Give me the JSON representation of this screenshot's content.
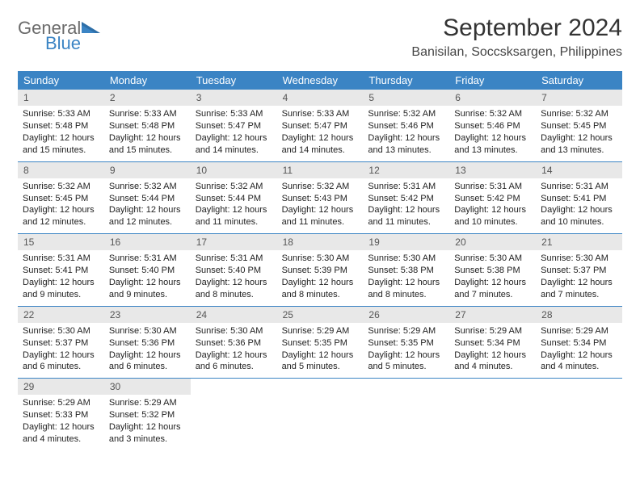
{
  "brand": {
    "part1": "General",
    "part2": "Blue"
  },
  "title": "September 2024",
  "location": "Banisilan, Soccsksargen, Philippines",
  "colors": {
    "header_bg": "#3b84c4",
    "daynum_bg": "#e8e8e8",
    "row_border": "#3b84c4",
    "page_bg": "#ffffff",
    "title_color": "#333333",
    "logo_gray": "#6b6b6b",
    "logo_blue": "#3b84c4"
  },
  "weekdays": [
    "Sunday",
    "Monday",
    "Tuesday",
    "Wednesday",
    "Thursday",
    "Friday",
    "Saturday"
  ],
  "weeks": [
    [
      {
        "n": "1",
        "sr": "Sunrise: 5:33 AM",
        "ss": "Sunset: 5:48 PM",
        "d1": "Daylight: 12 hours",
        "d2": "and 15 minutes."
      },
      {
        "n": "2",
        "sr": "Sunrise: 5:33 AM",
        "ss": "Sunset: 5:48 PM",
        "d1": "Daylight: 12 hours",
        "d2": "and 15 minutes."
      },
      {
        "n": "3",
        "sr": "Sunrise: 5:33 AM",
        "ss": "Sunset: 5:47 PM",
        "d1": "Daylight: 12 hours",
        "d2": "and 14 minutes."
      },
      {
        "n": "4",
        "sr": "Sunrise: 5:33 AM",
        "ss": "Sunset: 5:47 PM",
        "d1": "Daylight: 12 hours",
        "d2": "and 14 minutes."
      },
      {
        "n": "5",
        "sr": "Sunrise: 5:32 AM",
        "ss": "Sunset: 5:46 PM",
        "d1": "Daylight: 12 hours",
        "d2": "and 13 minutes."
      },
      {
        "n": "6",
        "sr": "Sunrise: 5:32 AM",
        "ss": "Sunset: 5:46 PM",
        "d1": "Daylight: 12 hours",
        "d2": "and 13 minutes."
      },
      {
        "n": "7",
        "sr": "Sunrise: 5:32 AM",
        "ss": "Sunset: 5:45 PM",
        "d1": "Daylight: 12 hours",
        "d2": "and 13 minutes."
      }
    ],
    [
      {
        "n": "8",
        "sr": "Sunrise: 5:32 AM",
        "ss": "Sunset: 5:45 PM",
        "d1": "Daylight: 12 hours",
        "d2": "and 12 minutes."
      },
      {
        "n": "9",
        "sr": "Sunrise: 5:32 AM",
        "ss": "Sunset: 5:44 PM",
        "d1": "Daylight: 12 hours",
        "d2": "and 12 minutes."
      },
      {
        "n": "10",
        "sr": "Sunrise: 5:32 AM",
        "ss": "Sunset: 5:44 PM",
        "d1": "Daylight: 12 hours",
        "d2": "and 11 minutes."
      },
      {
        "n": "11",
        "sr": "Sunrise: 5:32 AM",
        "ss": "Sunset: 5:43 PM",
        "d1": "Daylight: 12 hours",
        "d2": "and 11 minutes."
      },
      {
        "n": "12",
        "sr": "Sunrise: 5:31 AM",
        "ss": "Sunset: 5:42 PM",
        "d1": "Daylight: 12 hours",
        "d2": "and 11 minutes."
      },
      {
        "n": "13",
        "sr": "Sunrise: 5:31 AM",
        "ss": "Sunset: 5:42 PM",
        "d1": "Daylight: 12 hours",
        "d2": "and 10 minutes."
      },
      {
        "n": "14",
        "sr": "Sunrise: 5:31 AM",
        "ss": "Sunset: 5:41 PM",
        "d1": "Daylight: 12 hours",
        "d2": "and 10 minutes."
      }
    ],
    [
      {
        "n": "15",
        "sr": "Sunrise: 5:31 AM",
        "ss": "Sunset: 5:41 PM",
        "d1": "Daylight: 12 hours",
        "d2": "and 9 minutes."
      },
      {
        "n": "16",
        "sr": "Sunrise: 5:31 AM",
        "ss": "Sunset: 5:40 PM",
        "d1": "Daylight: 12 hours",
        "d2": "and 9 minutes."
      },
      {
        "n": "17",
        "sr": "Sunrise: 5:31 AM",
        "ss": "Sunset: 5:40 PM",
        "d1": "Daylight: 12 hours",
        "d2": "and 8 minutes."
      },
      {
        "n": "18",
        "sr": "Sunrise: 5:30 AM",
        "ss": "Sunset: 5:39 PM",
        "d1": "Daylight: 12 hours",
        "d2": "and 8 minutes."
      },
      {
        "n": "19",
        "sr": "Sunrise: 5:30 AM",
        "ss": "Sunset: 5:38 PM",
        "d1": "Daylight: 12 hours",
        "d2": "and 8 minutes."
      },
      {
        "n": "20",
        "sr": "Sunrise: 5:30 AM",
        "ss": "Sunset: 5:38 PM",
        "d1": "Daylight: 12 hours",
        "d2": "and 7 minutes."
      },
      {
        "n": "21",
        "sr": "Sunrise: 5:30 AM",
        "ss": "Sunset: 5:37 PM",
        "d1": "Daylight: 12 hours",
        "d2": "and 7 minutes."
      }
    ],
    [
      {
        "n": "22",
        "sr": "Sunrise: 5:30 AM",
        "ss": "Sunset: 5:37 PM",
        "d1": "Daylight: 12 hours",
        "d2": "and 6 minutes."
      },
      {
        "n": "23",
        "sr": "Sunrise: 5:30 AM",
        "ss": "Sunset: 5:36 PM",
        "d1": "Daylight: 12 hours",
        "d2": "and 6 minutes."
      },
      {
        "n": "24",
        "sr": "Sunrise: 5:30 AM",
        "ss": "Sunset: 5:36 PM",
        "d1": "Daylight: 12 hours",
        "d2": "and 6 minutes."
      },
      {
        "n": "25",
        "sr": "Sunrise: 5:29 AM",
        "ss": "Sunset: 5:35 PM",
        "d1": "Daylight: 12 hours",
        "d2": "and 5 minutes."
      },
      {
        "n": "26",
        "sr": "Sunrise: 5:29 AM",
        "ss": "Sunset: 5:35 PM",
        "d1": "Daylight: 12 hours",
        "d2": "and 5 minutes."
      },
      {
        "n": "27",
        "sr": "Sunrise: 5:29 AM",
        "ss": "Sunset: 5:34 PM",
        "d1": "Daylight: 12 hours",
        "d2": "and 4 minutes."
      },
      {
        "n": "28",
        "sr": "Sunrise: 5:29 AM",
        "ss": "Sunset: 5:34 PM",
        "d1": "Daylight: 12 hours",
        "d2": "and 4 minutes."
      }
    ],
    [
      {
        "n": "29",
        "sr": "Sunrise: 5:29 AM",
        "ss": "Sunset: 5:33 PM",
        "d1": "Daylight: 12 hours",
        "d2": "and 4 minutes."
      },
      {
        "n": "30",
        "sr": "Sunrise: 5:29 AM",
        "ss": "Sunset: 5:32 PM",
        "d1": "Daylight: 12 hours",
        "d2": "and 3 minutes."
      },
      {
        "empty": true
      },
      {
        "empty": true
      },
      {
        "empty": true
      },
      {
        "empty": true
      },
      {
        "empty": true
      }
    ]
  ]
}
